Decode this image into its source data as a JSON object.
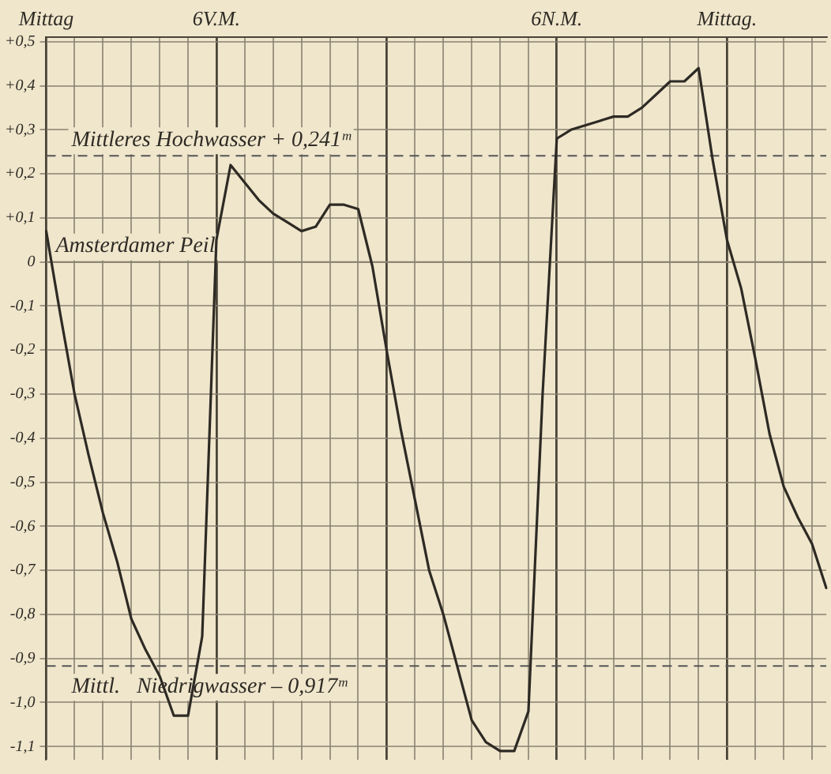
{
  "chart_data": {
    "type": "line",
    "grid": true,
    "legend": false,
    "marker": "none",
    "line_style": "solid",
    "categories": [
      "Mittag",
      null,
      null,
      null,
      null,
      null,
      null,
      null,
      null,
      null,
      null,
      null,
      "6V.M.",
      null,
      null,
      null,
      null,
      null,
      null,
      null,
      null,
      null,
      null,
      null,
      null,
      null,
      null,
      null,
      null,
      null,
      null,
      null,
      null,
      null,
      null,
      null,
      "6N.M.",
      null,
      null,
      null,
      null,
      null,
      null,
      null,
      null,
      null,
      null,
      null,
      "Mittag.",
      null,
      null,
      null,
      null,
      null,
      null,
      null
    ],
    "series": [
      {
        "color": "#2e2a24",
        "values": [
          0.07,
          -0.12,
          -0.3,
          -0.44,
          -0.57,
          -0.68,
          -0.81,
          -0.88,
          -0.94,
          -1.03,
          -1.03,
          -0.85,
          0.05,
          0.22,
          0.18,
          0.14,
          0.11,
          0.09,
          0.07,
          0.08,
          0.13,
          0.13,
          0.12,
          -0.01,
          -0.2,
          -0.38,
          -0.54,
          -0.7,
          -0.8,
          -0.92,
          -1.04,
          -1.09,
          -1.11,
          -1.11,
          -1.02,
          -0.3,
          0.28,
          0.3,
          0.31,
          0.32,
          0.33,
          0.33,
          0.35,
          0.38,
          0.41,
          0.41,
          0.44,
          0.23,
          0.05,
          -0.06,
          -0.22,
          -0.39,
          -0.51,
          -0.58,
          -0.64,
          -0.74
        ]
      }
    ],
    "ylim": [
      -1.13,
      0.51
    ],
    "yticks": [
      {
        "value": 0.5,
        "label": "+0,5"
      },
      {
        "value": 0.4,
        "label": "+0,4"
      },
      {
        "value": 0.3,
        "label": "+0,3"
      },
      {
        "value": 0.2,
        "label": "+0,2"
      },
      {
        "value": 0.1,
        "label": "+0,1"
      },
      0,
      {
        "value": -0.1,
        "label": "-0,1"
      },
      {
        "value": -0.2,
        "label": "-0,2"
      },
      {
        "value": -0.3,
        "label": "-0,3"
      },
      {
        "value": -0.4,
        "label": "-0,4"
      },
      {
        "value": -0.5,
        "label": "-0,5"
      },
      {
        "value": -0.6,
        "label": "-0,6"
      },
      {
        "value": -0.7,
        "label": "-0,7"
      },
      {
        "value": -0.8,
        "label": "-0,8"
      },
      {
        "value": -0.9,
        "label": "-0,9"
      },
      {
        "value": -1.0,
        "label": "-1,0"
      },
      {
        "value": -1.1,
        "label": "-1,1"
      }
    ],
    "ref_lines": [
      {
        "axis": "y",
        "value": 0.241,
        "label": "Mittleres Hochwasser + 0,241ᵐ",
        "line_style": "dashed",
        "color": "#555555"
      },
      {
        "axis": "y",
        "value": 0,
        "label": "Amsterdamer Peil",
        "line_style": "solid",
        "color": "#8a8270"
      },
      {
        "axis": "y",
        "value": -0.917,
        "label": "Mittl.   Niedrigwasser – 0,917ᵐ",
        "line_style": "dashed",
        "color": "#555555"
      }
    ]
  }
}
